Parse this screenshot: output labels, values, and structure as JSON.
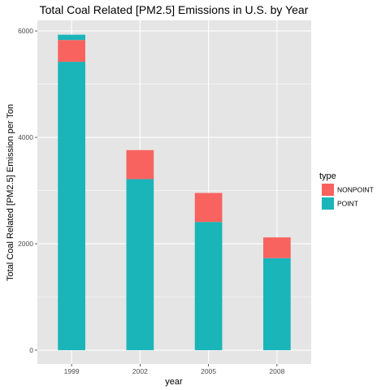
{
  "chart_data": {
    "type": "bar",
    "stacked": true,
    "title": "Total Coal Related [PM2.5] Emissions in U.S. by Year",
    "xlabel": "year",
    "ylabel": "Total Coal Related [PM2.5] Emission per Ton",
    "categories": [
      "1999",
      "2002",
      "2005",
      "2008"
    ],
    "series": [
      {
        "name": "POINT",
        "color": "#19b5b9",
        "values": [
          5420,
          3215,
          2410,
          1730
        ]
      },
      {
        "name": "NONPOINT",
        "color": "#f8635f",
        "values": [
          410,
          545,
          545,
          390
        ]
      },
      {
        "name": "",
        "color": "#19b5b9",
        "values": [
          100,
          0,
          0,
          0
        ]
      }
    ],
    "ylim": [
      -260,
      6200
    ],
    "yticks": [
      0,
      2000,
      4000,
      6000
    ],
    "ytick_labels": [
      "0",
      "2000",
      "4000",
      "6000"
    ],
    "grid": true,
    "legend": {
      "title": "type",
      "placement": "right",
      "entries": [
        {
          "name": "NONPOINT",
          "color": "#f8635f"
        },
        {
          "name": "POINT",
          "color": "#19b5b9"
        }
      ]
    },
    "panel_background": "#e5e5e5",
    "grid_color": "#ffffff"
  }
}
